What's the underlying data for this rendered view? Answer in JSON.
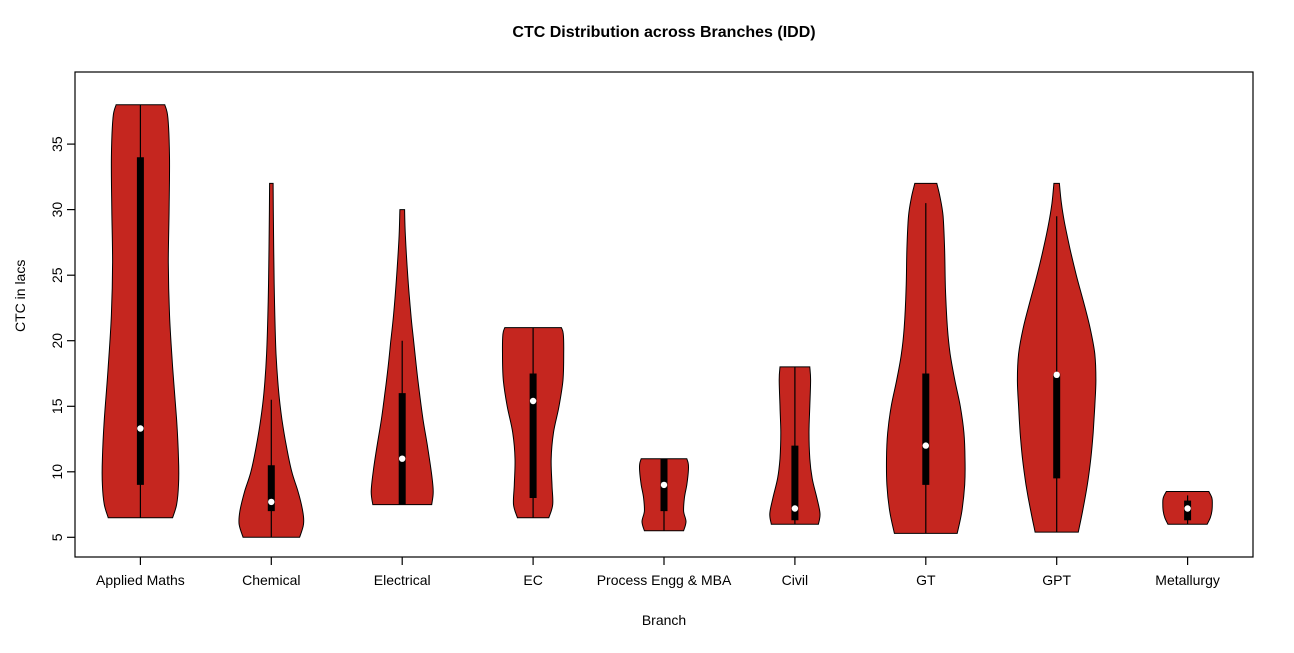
{
  "chart_data": {
    "type": "violin",
    "title": "CTC Distribution across Branches (IDD)",
    "xlabel": "Branch",
    "ylabel": "CTC in lacs",
    "ylim": [
      3.5,
      40.5
    ],
    "y_ticks": [
      5,
      10,
      15,
      20,
      25,
      30,
      35
    ],
    "grid": false,
    "fill_color": "#C5261F",
    "stroke_color": "#000000",
    "box_color": "#000000",
    "median_dot_color": "#ffffff",
    "categories": [
      "Applied Maths",
      "Chemical",
      "Electrical",
      "EC",
      "Process Engg & MBA",
      "Civil",
      "GT",
      "GPT",
      "Metallurgy"
    ],
    "violins": [
      {
        "branch": "Applied Maths",
        "min": 6.5,
        "max": 38,
        "q1": 9,
        "q3": 34,
        "median": 13.3,
        "whisker_low": 6.5,
        "whisker_high": 38,
        "profile": [
          [
            6.5,
            0.82
          ],
          [
            7.5,
            0.92
          ],
          [
            9,
            0.97
          ],
          [
            11,
            0.97
          ],
          [
            14,
            0.92
          ],
          [
            18,
            0.82
          ],
          [
            22,
            0.74
          ],
          [
            26,
            0.71
          ],
          [
            30,
            0.73
          ],
          [
            34,
            0.74
          ],
          [
            37,
            0.7
          ],
          [
            38,
            0.62
          ]
        ]
      },
      {
        "branch": "Chemical",
        "min": 5,
        "max": 32,
        "q1": 7,
        "q3": 10.5,
        "median": 7.7,
        "whisker_low": 5,
        "whisker_high": 15.5,
        "profile": [
          [
            5,
            0.72
          ],
          [
            6,
            0.82
          ],
          [
            7,
            0.8
          ],
          [
            8.5,
            0.68
          ],
          [
            10,
            0.52
          ],
          [
            12,
            0.38
          ],
          [
            14,
            0.27
          ],
          [
            16,
            0.19
          ],
          [
            19,
            0.12
          ],
          [
            23,
            0.08
          ],
          [
            27,
            0.06
          ],
          [
            30,
            0.05
          ],
          [
            32,
            0.045
          ]
        ]
      },
      {
        "branch": "Electrical",
        "min": 7.5,
        "max": 30,
        "q1": 7.5,
        "q3": 16,
        "median": 11,
        "whisker_low": 7.5,
        "whisker_high": 20,
        "profile": [
          [
            7.5,
            0.75
          ],
          [
            8.5,
            0.79
          ],
          [
            10,
            0.74
          ],
          [
            12,
            0.64
          ],
          [
            14,
            0.53
          ],
          [
            16,
            0.44
          ],
          [
            18,
            0.36
          ],
          [
            20,
            0.29
          ],
          [
            22,
            0.22
          ],
          [
            25,
            0.14
          ],
          [
            28,
            0.08
          ],
          [
            30,
            0.06
          ]
        ]
      },
      {
        "branch": "EC",
        "min": 6.5,
        "max": 21,
        "q1": 8,
        "q3": 17.5,
        "median": 15.4,
        "whisker_low": 6.5,
        "whisker_high": 21,
        "profile": [
          [
            6.5,
            0.4
          ],
          [
            7.5,
            0.5
          ],
          [
            9,
            0.48
          ],
          [
            11,
            0.46
          ],
          [
            13,
            0.52
          ],
          [
            15,
            0.66
          ],
          [
            17,
            0.76
          ],
          [
            19,
            0.78
          ],
          [
            20.5,
            0.77
          ],
          [
            21,
            0.72
          ]
        ]
      },
      {
        "branch": "Process Engg & MBA",
        "min": 5.5,
        "max": 11,
        "q1": 7,
        "q3": 11,
        "median": 9,
        "whisker_low": 5.5,
        "whisker_high": 11,
        "profile": [
          [
            5.5,
            0.5
          ],
          [
            6.2,
            0.56
          ],
          [
            7,
            0.5
          ],
          [
            8,
            0.52
          ],
          [
            9,
            0.58
          ],
          [
            10,
            0.62
          ],
          [
            10.6,
            0.62
          ],
          [
            11,
            0.58
          ]
        ]
      },
      {
        "branch": "Civil",
        "min": 6,
        "max": 18,
        "q1": 6.3,
        "q3": 12,
        "median": 7.2,
        "whisker_low": 6,
        "whisker_high": 18,
        "profile": [
          [
            6,
            0.6
          ],
          [
            6.8,
            0.64
          ],
          [
            8,
            0.56
          ],
          [
            9.5,
            0.44
          ],
          [
            11,
            0.38
          ],
          [
            13,
            0.36
          ],
          [
            15,
            0.38
          ],
          [
            17,
            0.4
          ],
          [
            18,
            0.38
          ]
        ]
      },
      {
        "branch": "GT",
        "min": 5.3,
        "max": 32,
        "q1": 9,
        "q3": 17.5,
        "median": 12,
        "whisker_low": 5.3,
        "whisker_high": 30.5,
        "profile": [
          [
            5.3,
            0.8
          ],
          [
            7,
            0.92
          ],
          [
            9,
            0.99
          ],
          [
            11,
            1.0
          ],
          [
            13,
            0.97
          ],
          [
            15,
            0.88
          ],
          [
            17,
            0.74
          ],
          [
            19,
            0.62
          ],
          [
            21,
            0.55
          ],
          [
            24,
            0.5
          ],
          [
            27,
            0.48
          ],
          [
            29.5,
            0.44
          ],
          [
            31,
            0.36
          ],
          [
            32,
            0.28
          ]
        ]
      },
      {
        "branch": "GPT",
        "min": 5.4,
        "max": 32,
        "q1": 9.5,
        "q3": 17.5,
        "median": 17.4,
        "whisker_low": 5.4,
        "whisker_high": 29.5,
        "profile": [
          [
            5.4,
            0.55
          ],
          [
            7,
            0.66
          ],
          [
            9,
            0.78
          ],
          [
            11,
            0.87
          ],
          [
            13,
            0.93
          ],
          [
            15,
            0.97
          ],
          [
            17,
            1.0
          ],
          [
            19,
            0.97
          ],
          [
            21,
            0.85
          ],
          [
            23,
            0.68
          ],
          [
            25,
            0.5
          ],
          [
            27,
            0.34
          ],
          [
            29,
            0.2
          ],
          [
            30.5,
            0.12
          ],
          [
            32,
            0.07
          ]
        ]
      },
      {
        "branch": "Metallurgy",
        "min": 6,
        "max": 8.5,
        "q1": 6.3,
        "q3": 7.8,
        "median": 7.2,
        "whisker_low": 6,
        "whisker_high": 8.2,
        "profile": [
          [
            6,
            0.5
          ],
          [
            6.5,
            0.58
          ],
          [
            7,
            0.62
          ],
          [
            7.5,
            0.63
          ],
          [
            8,
            0.62
          ],
          [
            8.5,
            0.54
          ]
        ]
      }
    ]
  }
}
